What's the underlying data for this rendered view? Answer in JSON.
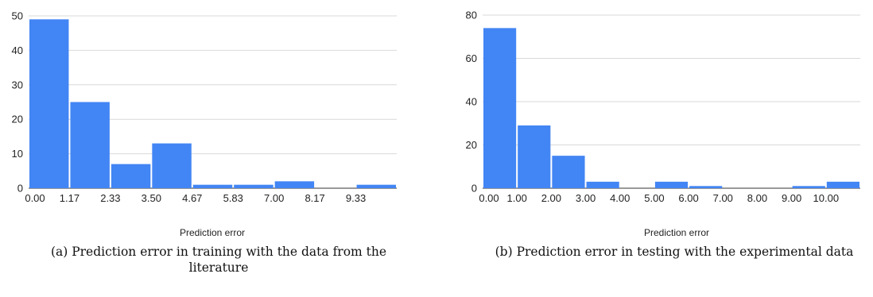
{
  "chart_data": [
    {
      "type": "bar",
      "categories": [
        "0.00-1.17",
        "1.17-2.33",
        "2.33-3.50",
        "3.50-4.67",
        "4.67-5.83",
        "5.83-7.00",
        "7.00-8.17",
        "8.17-9.33",
        "9.33-10.50"
      ],
      "values": [
        49,
        25,
        7,
        13,
        1,
        1,
        2,
        0,
        1
      ],
      "bin_edges": [
        0,
        1.1667,
        2.3333,
        3.5,
        4.6667,
        5.8333,
        7.0,
        8.1667,
        9.3333,
        10.5
      ],
      "xticks": [
        "0.00",
        "1.17",
        "2.33",
        "3.50",
        "4.67",
        "5.83",
        "7.00",
        "8.17",
        "9.33"
      ],
      "yticks": [
        "0",
        "10",
        "20",
        "30",
        "40",
        "50"
      ],
      "xlabel": "Prediction error",
      "ylabel": "",
      "ylim": [
        0,
        50
      ],
      "grid": true,
      "bar_color": "#4285f4",
      "caption": "(a) Prediction error in training with the data from the literature"
    },
    {
      "type": "bar",
      "categories": [
        "0.00-1.00",
        "1.00-2.00",
        "2.00-3.00",
        "3.00-4.00",
        "4.00-5.00",
        "5.00-6.00",
        "6.00-7.00",
        "7.00-8.00",
        "8.00-9.00",
        "9.00-10.00",
        "10.00-11.00"
      ],
      "values": [
        74,
        29,
        15,
        3,
        0,
        3,
        1,
        0,
        0,
        1,
        3
      ],
      "bin_edges": [
        0,
        1,
        2,
        3,
        4,
        5,
        6,
        7,
        8,
        9,
        10,
        11
      ],
      "xticks": [
        "0.00",
        "1.00",
        "2.00",
        "3.00",
        "4.00",
        "5.00",
        "6.00",
        "7.00",
        "8.00",
        "9.00",
        "10.00"
      ],
      "yticks": [
        "0",
        "20",
        "40",
        "60",
        "80"
      ],
      "xlabel": "Prediction error",
      "ylabel": "",
      "ylim": [
        0,
        80
      ],
      "grid": true,
      "bar_color": "#4285f4",
      "caption": "(b) Prediction error in testing with the experimental data"
    }
  ]
}
